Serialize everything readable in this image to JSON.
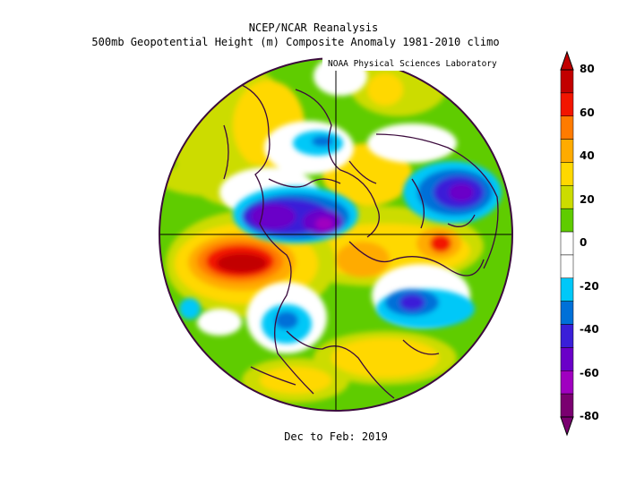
{
  "header": {
    "title": "NCEP/NCAR Reanalysis",
    "subtitle": "500mb Geopotential Height (m) Composite Anomaly 1981-2010 climo",
    "credit": "NOAA Physical Sciences Laboratory"
  },
  "footer": {
    "period": "Dec to Feb: 2019"
  },
  "colorbar": {
    "unit": "m",
    "ticks": [
      "80",
      "60",
      "40",
      "20",
      "0",
      "-20",
      "-40",
      "-60",
      "-80"
    ],
    "colors": [
      "#c20000",
      "#f21500",
      "#ff7b00",
      "#ffab00",
      "#ffd800",
      "#ccdc00",
      "#5fcc00",
      "#ffffff",
      "#ffffff",
      "#00c8f8",
      "#0070d8",
      "#3a1fd8",
      "#6a00c8",
      "#a000c0",
      "#7a0070"
    ]
  },
  "map": {
    "projection": "north-polar-stereographic",
    "field": "500mb geopotential height anomaly",
    "background_color": "#5fcc00",
    "contour_line_color": "#3b0a3c"
  }
}
